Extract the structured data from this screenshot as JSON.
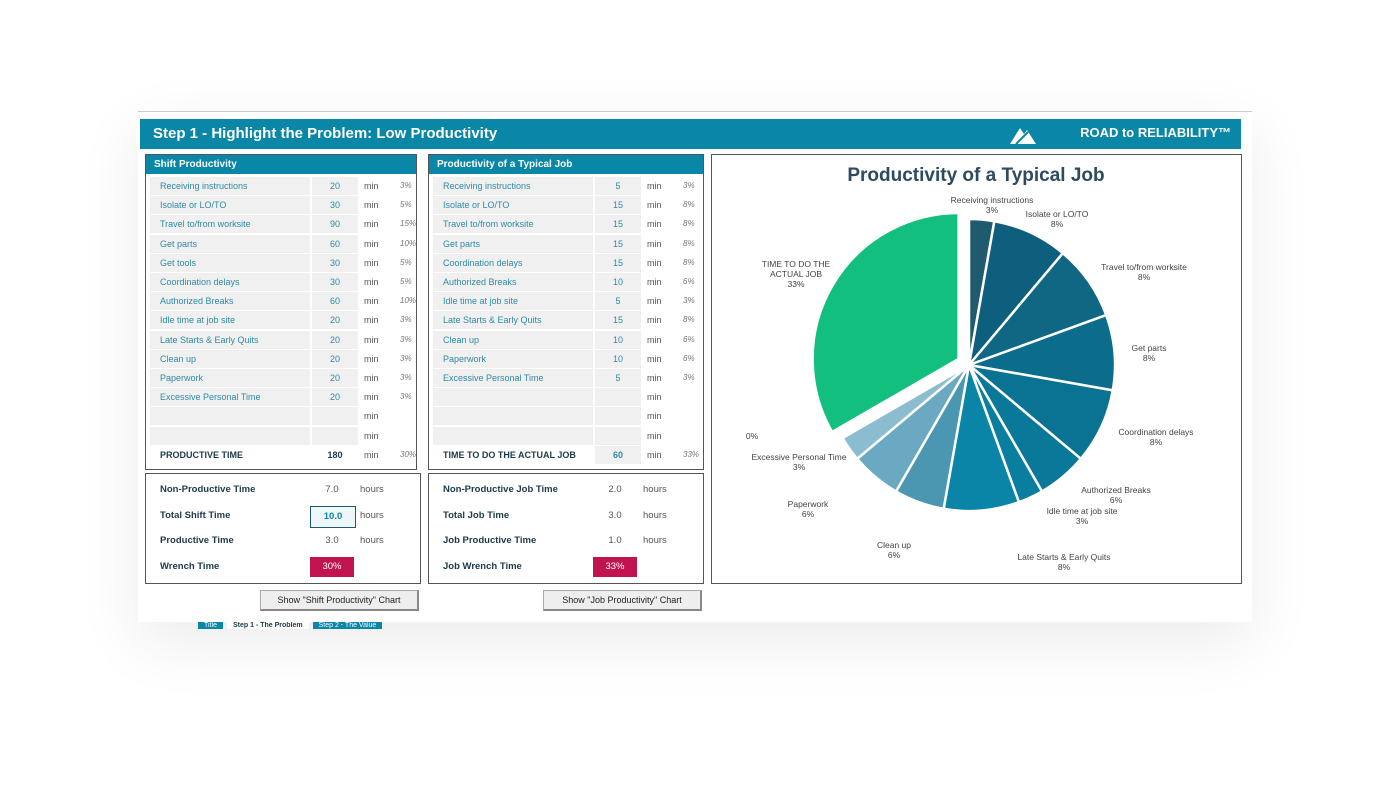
{
  "header": {
    "title": "Step 1 - Highlight the Problem: Low Productivity",
    "brand": "ROAD to RELIABILITY™"
  },
  "shift": {
    "title": "Shift Productivity",
    "rows": [
      [
        "Receiving instructions",
        "20",
        "min",
        "3%"
      ],
      [
        "Isolate or LO/TO",
        "30",
        "min",
        "5%"
      ],
      [
        "Travel to/from worksite",
        "90",
        "min",
        "15%"
      ],
      [
        "Get parts",
        "60",
        "min",
        "10%"
      ],
      [
        "Get tools",
        "30",
        "min",
        "5%"
      ],
      [
        "Coordination delays",
        "30",
        "min",
        "5%"
      ],
      [
        "Authorized Breaks",
        "60",
        "min",
        "10%"
      ],
      [
        "Idle time at job site",
        "20",
        "min",
        "3%"
      ],
      [
        "Late Starts & Early Quits",
        "20",
        "min",
        "3%"
      ],
      [
        "Clean up",
        "20",
        "min",
        "3%"
      ],
      [
        "Paperwork",
        "20",
        "min",
        "3%"
      ],
      [
        "Excessive Personal Time",
        "20",
        "min",
        "3%"
      ],
      [
        "",
        "",
        "min",
        ""
      ],
      [
        "",
        "",
        "min",
        ""
      ]
    ],
    "total": [
      "PRODUCTIVE TIME",
      "180",
      "min",
      "30%"
    ],
    "summary": [
      [
        "Non-Productive Time",
        "7.0",
        "hours"
      ],
      [
        "Total Shift Time",
        "10.0",
        "hours"
      ],
      [
        "Productive Time",
        "3.0",
        "hours"
      ],
      [
        "Wrench Time",
        "30%",
        ""
      ]
    ],
    "button": "Show \"Shift Productivity\" Chart"
  },
  "job": {
    "title": "Productivity of a Typical Job",
    "rows": [
      [
        "Receiving instructions",
        "5",
        "min",
        "3%"
      ],
      [
        "Isolate or LO/TO",
        "15",
        "min",
        "8%"
      ],
      [
        "Travel to/from worksite",
        "15",
        "min",
        "8%"
      ],
      [
        "Get parts",
        "15",
        "min",
        "8%"
      ],
      [
        "Coordination delays",
        "15",
        "min",
        "8%"
      ],
      [
        "Authorized Breaks",
        "10",
        "min",
        "6%"
      ],
      [
        "Idle time at job site",
        "5",
        "min",
        "3%"
      ],
      [
        "Late Starts & Early Quits",
        "15",
        "min",
        "8%"
      ],
      [
        "Clean up",
        "10",
        "min",
        "6%"
      ],
      [
        "Paperwork",
        "10",
        "min",
        "6%"
      ],
      [
        "Excessive Personal Time",
        "5",
        "min",
        "3%"
      ],
      [
        "",
        "",
        "min",
        ""
      ],
      [
        "",
        "",
        "min",
        ""
      ],
      [
        "",
        "",
        "min",
        ""
      ]
    ],
    "total": [
      "TIME TO DO THE ACTUAL JOB",
      "60",
      "min",
      "33%"
    ],
    "summary": [
      [
        "Non-Productive Job Time",
        "2.0",
        "hours"
      ],
      [
        "Total Job Time",
        "3.0",
        "hours"
      ],
      [
        "Job Productive Time",
        "1.0",
        "hours"
      ],
      [
        "Job Wrench Time",
        "33%",
        ""
      ]
    ],
    "button": "Show \"Job Productivity\" Chart"
  },
  "chart_data": {
    "type": "pie",
    "title": "Productivity of a Typical Job",
    "slices": [
      {
        "label": "Receiving instructions",
        "value": 5,
        "pct": "3%",
        "color": "#1f5a6e"
      },
      {
        "label": "Isolate or LO/TO",
        "value": 15,
        "pct": "8%",
        "color": "#0e5f7d"
      },
      {
        "label": "Travel to/from worksite",
        "value": 15,
        "pct": "8%",
        "color": "#0f6784"
      },
      {
        "label": "Get parts",
        "value": 15,
        "pct": "8%",
        "color": "#0b6d8b"
      },
      {
        "label": "Coordination delays",
        "value": 15,
        "pct": "8%",
        "color": "#0a7292"
      },
      {
        "label": "Authorized Breaks",
        "value": 10,
        "pct": "6%",
        "color": "#0a7899"
      },
      {
        "label": "Idle time at job site",
        "value": 5,
        "pct": "3%",
        "color": "#0a7e9f"
      },
      {
        "label": "Late Starts & Early Quits",
        "value": 15,
        "pct": "8%",
        "color": "#0a85a8"
      },
      {
        "label": "Clean up",
        "value": 10,
        "pct": "6%",
        "color": "#4b97b2"
      },
      {
        "label": "Paperwork",
        "value": 10,
        "pct": "6%",
        "color": "#6aa9c1"
      },
      {
        "label": "Excessive Personal Time",
        "value": 5,
        "pct": "3%",
        "color": "#8cbccf"
      },
      {
        "label": "",
        "value": 0,
        "pct": "0%",
        "color": "#aaa"
      },
      {
        "label": "TIME TO DO THE ACTUAL JOB",
        "value": 60,
        "pct": "33%",
        "color": "#13bf7e"
      }
    ]
  },
  "sheet_tabs": [
    "Title",
    "Step 1 - The Problem",
    "Step 2 - The Value"
  ]
}
